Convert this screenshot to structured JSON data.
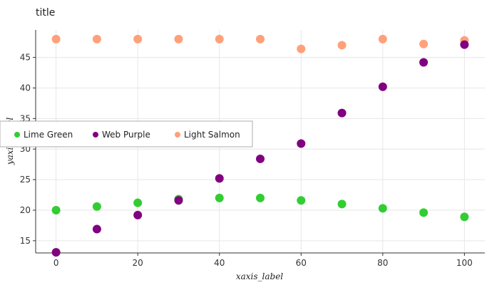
{
  "chart_data": {
    "type": "scatter",
    "title": "title",
    "xlabel": "xaxis_label",
    "ylabel": "yaxis_label",
    "xlim": [
      -5,
      105
    ],
    "ylim": [
      13,
      49.5
    ],
    "xticks": [
      0,
      20,
      40,
      60,
      80,
      100
    ],
    "yticks": [
      15,
      20,
      25,
      30,
      35,
      40,
      45
    ],
    "grid": true,
    "legend_position": "center-left",
    "series": [
      {
        "name": "Lime Green",
        "color": "#32CD32",
        "x": [
          0,
          10,
          20,
          30,
          40,
          50,
          60,
          70,
          80,
          90,
          100
        ],
        "y": [
          20.0,
          20.6,
          21.2,
          21.8,
          22.0,
          22.0,
          21.6,
          21.0,
          20.3,
          19.6,
          18.9
        ]
      },
      {
        "name": "Web Purple",
        "color": "#800080",
        "x": [
          0,
          10,
          20,
          30,
          40,
          50,
          60,
          70,
          80,
          90,
          100
        ],
        "y": [
          13.1,
          16.9,
          19.2,
          21.6,
          25.2,
          28.4,
          30.9,
          35.9,
          40.2,
          44.2,
          47.1
        ]
      },
      {
        "name": "Light Salmon",
        "color": "#FFA07A",
        "x": [
          0,
          10,
          20,
          30,
          40,
          50,
          60,
          70,
          80,
          90,
          100
        ],
        "y": [
          48.0,
          48.0,
          48.0,
          48.0,
          48.0,
          48.0,
          46.4,
          47.0,
          48.0,
          47.2,
          47.8
        ]
      }
    ]
  }
}
